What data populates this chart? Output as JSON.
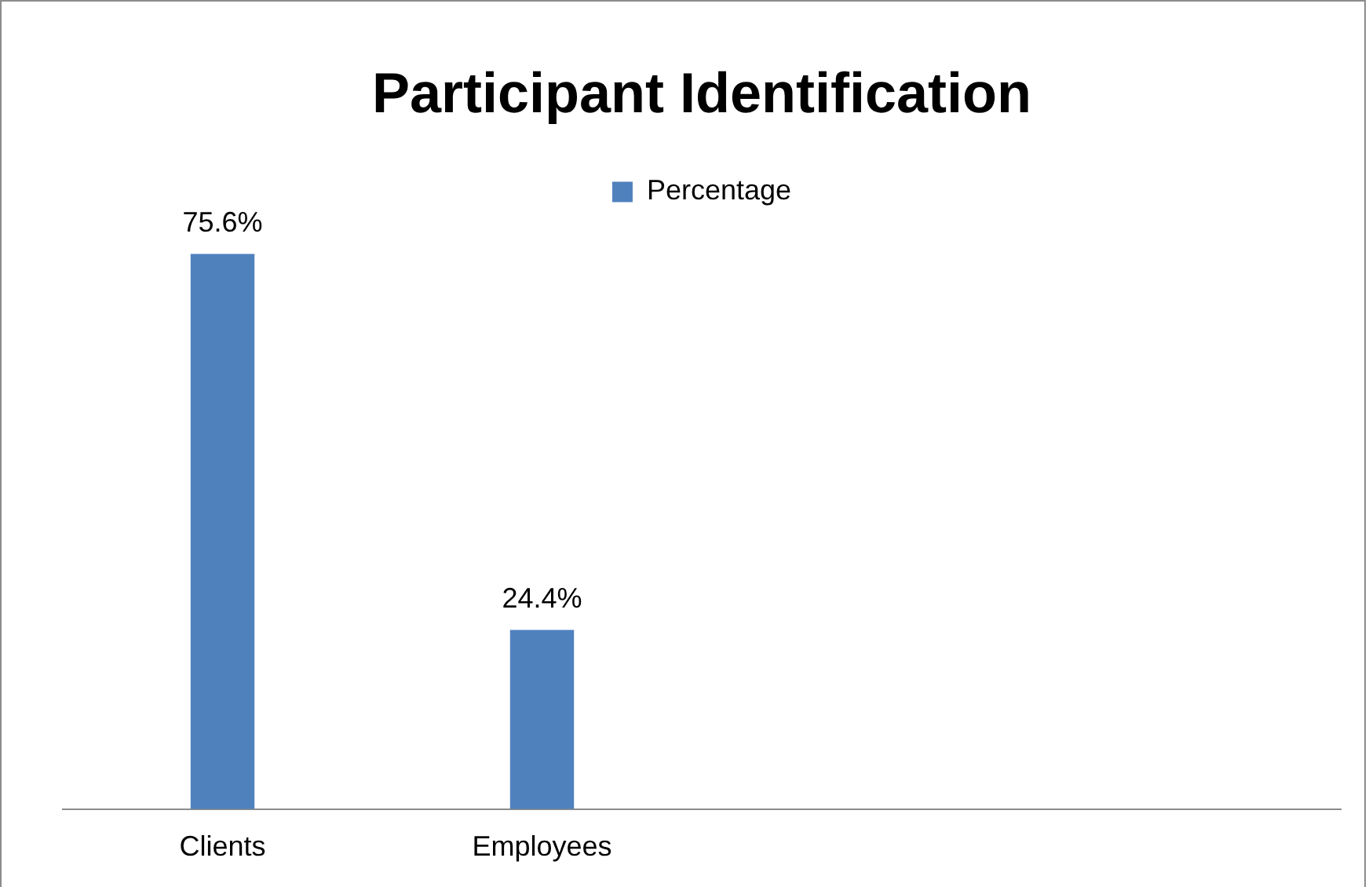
{
  "chart_data": {
    "type": "bar",
    "title": "Participant Identification",
    "categories": [
      "Clients",
      "Employees",
      null,
      null
    ],
    "series": [
      {
        "name": "Percentage",
        "color": "#4f81bd",
        "values": [
          75.6,
          24.4,
          null,
          null
        ],
        "value_labels": [
          "75.6%",
          "24.4%",
          null,
          null
        ]
      }
    ],
    "legend": "top",
    "tick_labels": "x"
  }
}
